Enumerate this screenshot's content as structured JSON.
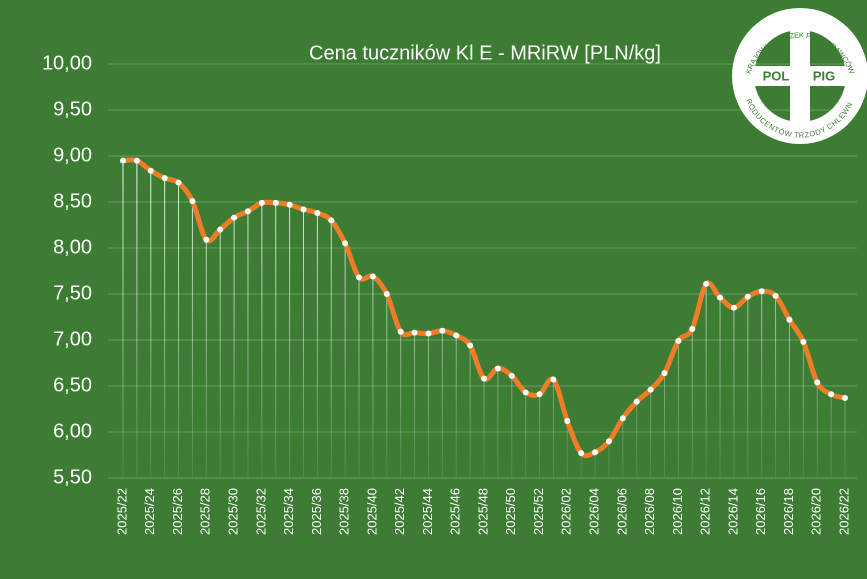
{
  "chart_data": {
    "type": "line",
    "title": "Cena tuczników Kl E - MRiRW [PLN/kg]",
    "categories": [
      "2025/22",
      null,
      "2025/24",
      null,
      "2025/26",
      null,
      "2025/28",
      null,
      "2025/30",
      null,
      "2025/32",
      null,
      "2025/34",
      null,
      "2025/36",
      null,
      "2025/38",
      null,
      "2025/40",
      null,
      "2025/42",
      null,
      "2025/44",
      null,
      "2025/46",
      null,
      "2025/48",
      null,
      "2025/50",
      null,
      "2025/52",
      null,
      "2026/02",
      null,
      "2026/04",
      null,
      "2026/06",
      null,
      "2026/08",
      null,
      "2026/10",
      null,
      "2026/12",
      null,
      "2026/14",
      null,
      "2026/16",
      null,
      "2026/18",
      null,
      "2026/20",
      null,
      "2026/22"
    ],
    "series": [
      {
        "color": "#f07c28",
        "values": [
          8.95,
          8.95,
          8.84,
          8.76,
          8.71,
          8.51,
          8.09,
          8.2,
          8.33,
          8.4,
          8.49,
          8.49,
          8.47,
          8.42,
          8.38,
          8.3,
          8.05,
          7.68,
          7.69,
          7.5,
          7.09,
          7.08,
          7.07,
          7.1,
          7.05,
          6.94,
          6.58,
          6.69,
          6.61,
          6.43,
          6.41,
          6.57,
          6.12,
          5.77,
          5.78,
          5.9,
          6.15,
          6.33,
          6.46,
          6.64,
          6.99,
          7.12,
          7.61,
          7.46,
          7.35,
          7.47,
          7.53,
          7.48,
          7.22,
          6.98,
          6.54,
          6.41,
          6.37
        ]
      }
    ],
    "ylim": [
      5.5,
      10.0
    ],
    "yticks": [
      {
        "value": 5.5,
        "label": "5,50"
      },
      {
        "value": 6.0,
        "label": "6,00"
      },
      {
        "value": 6.5,
        "label": "6,50"
      },
      {
        "value": 7.0,
        "label": "7,00"
      },
      {
        "value": 7.5,
        "label": "7,50"
      },
      {
        "value": 8.0,
        "label": "8,00"
      },
      {
        "value": 8.5,
        "label": "8,50"
      },
      {
        "value": 9.0,
        "label": "9,00"
      },
      {
        "value": 9.5,
        "label": "9,50"
      },
      {
        "value": 10.0,
        "label": "10,00"
      }
    ],
    "grid": true
  },
  "logo": {
    "left": "POL",
    "right": "PIG",
    "ring_top": "KRAJOWY ZWIĄZEK PRACODAWCÓW",
    "ring_bottom": "PRODUCENTÓW TRZODY CHLEWNEJ"
  }
}
